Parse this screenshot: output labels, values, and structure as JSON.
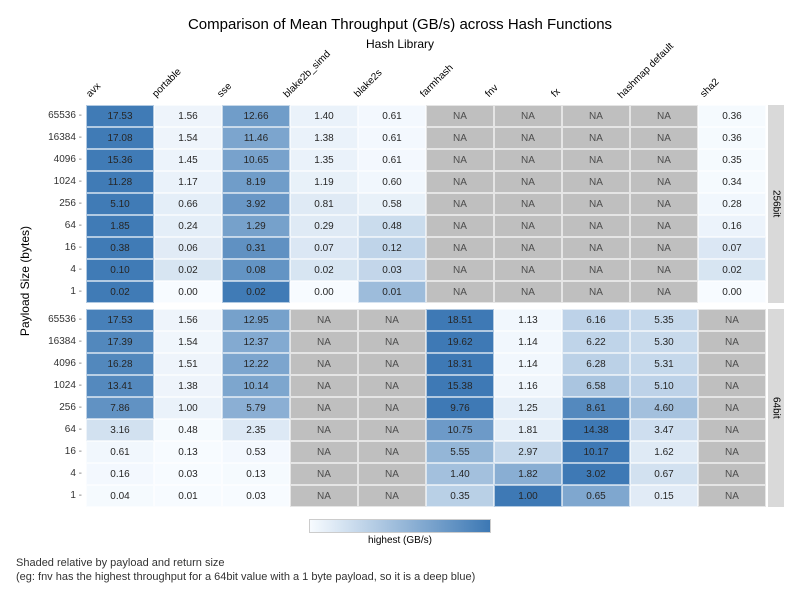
{
  "title": "Comparison of Mean Throughput (GB/s) across Hash Functions",
  "subtitle": "Hash Library",
  "yaxis": "Payload Size (bytes)",
  "legend_label": "highest (GB/s)",
  "footnote_line1": "Shaded relative by payload and return size",
  "footnote_line2": "(eg: fnv has the highest throughput for a 64bit value with a 1 byte payload, so it is a deep blue)",
  "columns": [
    "avx",
    "portable",
    "sse",
    "blake2b_simd",
    "blake2s",
    "farmhash",
    "fnv",
    "fx",
    "hashmap default",
    "sha2"
  ],
  "colors": {
    "na": "#bfbfbf",
    "scale_low": "#f7fbff",
    "scale_high": "#3c78b4",
    "text": "#262626"
  },
  "facets": [
    {
      "strip": "256bit",
      "rows": [
        {
          "size": "65536",
          "v": [
            [
              "17.53",
              0.98
            ],
            [
              "1.56",
              0.05
            ],
            [
              "12.66",
              0.72
            ],
            [
              "1.40",
              0.07
            ],
            [
              "0.61",
              0.02
            ],
            [
              "NA",
              null
            ],
            [
              "NA",
              null
            ],
            [
              "NA",
              null
            ],
            [
              "NA",
              null
            ],
            [
              "0.36",
              0.01
            ]
          ]
        },
        {
          "size": "16384",
          "v": [
            [
              "17.08",
              0.98
            ],
            [
              "1.54",
              0.05
            ],
            [
              "11.46",
              0.66
            ],
            [
              "1.38",
              0.07
            ],
            [
              "0.61",
              0.02
            ],
            [
              "NA",
              null
            ],
            [
              "NA",
              null
            ],
            [
              "NA",
              null
            ],
            [
              "NA",
              null
            ],
            [
              "0.36",
              0.01
            ]
          ]
        },
        {
          "size": "4096",
          "v": [
            [
              "15.36",
              0.98
            ],
            [
              "1.45",
              0.06
            ],
            [
              "10.65",
              0.68
            ],
            [
              "1.35",
              0.07
            ],
            [
              "0.61",
              0.02
            ],
            [
              "NA",
              null
            ],
            [
              "NA",
              null
            ],
            [
              "NA",
              null
            ],
            [
              "NA",
              null
            ],
            [
              "0.35",
              0.01
            ]
          ]
        },
        {
          "size": "1024",
          "v": [
            [
              "11.28",
              0.98
            ],
            [
              "1.17",
              0.07
            ],
            [
              "8.19",
              0.72
            ],
            [
              "1.19",
              0.08
            ],
            [
              "0.60",
              0.03
            ],
            [
              "NA",
              null
            ],
            [
              "NA",
              null
            ],
            [
              "NA",
              null
            ],
            [
              "NA",
              null
            ],
            [
              "0.34",
              0.01
            ]
          ]
        },
        {
          "size": "256",
          "v": [
            [
              "5.10",
              0.98
            ],
            [
              "0.66",
              0.1
            ],
            [
              "3.92",
              0.76
            ],
            [
              "0.81",
              0.13
            ],
            [
              "0.58",
              0.08
            ],
            [
              "NA",
              null
            ],
            [
              "NA",
              null
            ],
            [
              "NA",
              null
            ],
            [
              "NA",
              null
            ],
            [
              "0.28",
              0.03
            ]
          ]
        },
        {
          "size": "64",
          "v": [
            [
              "1.85",
              0.98
            ],
            [
              "0.24",
              0.1
            ],
            [
              "1.29",
              0.69
            ],
            [
              "0.29",
              0.13
            ],
            [
              "0.48",
              0.24
            ],
            [
              "NA",
              null
            ],
            [
              "NA",
              null
            ],
            [
              "NA",
              null
            ],
            [
              "NA",
              null
            ],
            [
              "0.16",
              0.06
            ]
          ]
        },
        {
          "size": "16",
          "v": [
            [
              "0.38",
              0.98
            ],
            [
              "0.06",
              0.12
            ],
            [
              "0.31",
              0.81
            ],
            [
              "0.07",
              0.15
            ],
            [
              "0.12",
              0.3
            ],
            [
              "NA",
              null
            ],
            [
              "NA",
              null
            ],
            [
              "NA",
              null
            ],
            [
              "NA",
              null
            ],
            [
              "0.07",
              0.15
            ]
          ]
        },
        {
          "size": "4",
          "v": [
            [
              "0.10",
              0.98
            ],
            [
              "0.02",
              0.17
            ],
            [
              "0.08",
              0.79
            ],
            [
              "0.02",
              0.17
            ],
            [
              "0.03",
              0.28
            ],
            [
              "NA",
              null
            ],
            [
              "NA",
              null
            ],
            [
              "NA",
              null
            ],
            [
              "NA",
              null
            ],
            [
              "0.02",
              0.17
            ]
          ]
        },
        {
          "size": "1",
          "v": [
            [
              "0.02",
              0.98
            ],
            [
              "0.00",
              0.0
            ],
            [
              "0.02",
              0.98
            ],
            [
              "0.00",
              0.0
            ],
            [
              "0.01",
              0.48
            ],
            [
              "NA",
              null
            ],
            [
              "NA",
              null
            ],
            [
              "NA",
              null
            ],
            [
              "NA",
              null
            ],
            [
              "0.00",
              0.0
            ]
          ]
        }
      ]
    },
    {
      "strip": "64bit",
      "rows": [
        {
          "size": "65536",
          "v": [
            [
              "17.53",
              0.94
            ],
            [
              "1.56",
              0.05
            ],
            [
              "12.95",
              0.69
            ],
            [
              "NA",
              null
            ],
            [
              "NA",
              null
            ],
            [
              "18.51",
              0.99
            ],
            [
              "1.13",
              0.03
            ],
            [
              "6.16",
              0.31
            ],
            [
              "5.35",
              0.27
            ],
            [
              "NA",
              null
            ]
          ]
        },
        {
          "size": "16384",
          "v": [
            [
              "17.39",
              0.88
            ],
            [
              "1.54",
              0.04
            ],
            [
              "12.37",
              0.62
            ],
            [
              "NA",
              null
            ],
            [
              "NA",
              null
            ],
            [
              "19.62",
              0.99
            ],
            [
              "1.14",
              0.03
            ],
            [
              "6.22",
              0.3
            ],
            [
              "5.30",
              0.25
            ],
            [
              "NA",
              null
            ]
          ]
        },
        {
          "size": "4096",
          "v": [
            [
              "16.28",
              0.88
            ],
            [
              "1.51",
              0.05
            ],
            [
              "12.22",
              0.66
            ],
            [
              "NA",
              null
            ],
            [
              "NA",
              null
            ],
            [
              "18.31",
              0.99
            ],
            [
              "1.14",
              0.03
            ],
            [
              "6.28",
              0.32
            ],
            [
              "5.31",
              0.27
            ],
            [
              "NA",
              null
            ]
          ]
        },
        {
          "size": "1024",
          "v": [
            [
              "13.41",
              0.87
            ],
            [
              "1.38",
              0.05
            ],
            [
              "10.14",
              0.65
            ],
            [
              "NA",
              null
            ],
            [
              "NA",
              null
            ],
            [
              "15.38",
              0.99
            ],
            [
              "1.16",
              0.04
            ],
            [
              "6.58",
              0.41
            ],
            [
              "5.10",
              0.31
            ],
            [
              "NA",
              null
            ]
          ]
        },
        {
          "size": "256",
          "v": [
            [
              "7.86",
              0.8
            ],
            [
              "1.00",
              0.07
            ],
            [
              "5.79",
              0.58
            ],
            [
              "NA",
              null
            ],
            [
              "NA",
              null
            ],
            [
              "9.76",
              0.99
            ],
            [
              "1.25",
              0.1
            ],
            [
              "8.61",
              0.87
            ],
            [
              "4.60",
              0.45
            ],
            [
              "NA",
              null
            ]
          ]
        },
        {
          "size": "64",
          "v": [
            [
              "3.16",
              0.2
            ],
            [
              "0.48",
              0.01
            ],
            [
              "2.35",
              0.14
            ],
            [
              "NA",
              null
            ],
            [
              "NA",
              null
            ],
            [
              "10.75",
              0.74
            ],
            [
              "1.81",
              0.1
            ],
            [
              "14.38",
              0.99
            ],
            [
              "3.47",
              0.22
            ],
            [
              "NA",
              null
            ]
          ]
        },
        {
          "size": "16",
          "v": [
            [
              "0.61",
              0.03
            ],
            [
              "0.13",
              0.0
            ],
            [
              "0.53",
              0.02
            ],
            [
              "NA",
              null
            ],
            [
              "NA",
              null
            ],
            [
              "5.55",
              0.53
            ],
            [
              "2.97",
              0.27
            ],
            [
              "10.17",
              0.99
            ],
            [
              "1.62",
              0.13
            ],
            [
              "NA",
              null
            ]
          ]
        },
        {
          "size": "4",
          "v": [
            [
              "0.16",
              0.02
            ],
            [
              "0.03",
              0.0
            ],
            [
              "0.13",
              0.01
            ],
            [
              "NA",
              null
            ],
            [
              "NA",
              null
            ],
            [
              "1.40",
              0.45
            ],
            [
              "1.82",
              0.59
            ],
            [
              "3.02",
              0.99
            ],
            [
              "0.67",
              0.2
            ],
            [
              "NA",
              null
            ]
          ]
        },
        {
          "size": "1",
          "v": [
            [
              "0.04",
              0.01
            ],
            [
              "0.01",
              0.0
            ],
            [
              "0.03",
              0.0
            ],
            [
              "NA",
              null
            ],
            [
              "NA",
              null
            ],
            [
              "0.35",
              0.33
            ],
            [
              "1.00",
              0.99
            ],
            [
              "0.65",
              0.64
            ],
            [
              "0.15",
              0.12
            ],
            [
              "NA",
              null
            ]
          ]
        }
      ]
    }
  ]
}
